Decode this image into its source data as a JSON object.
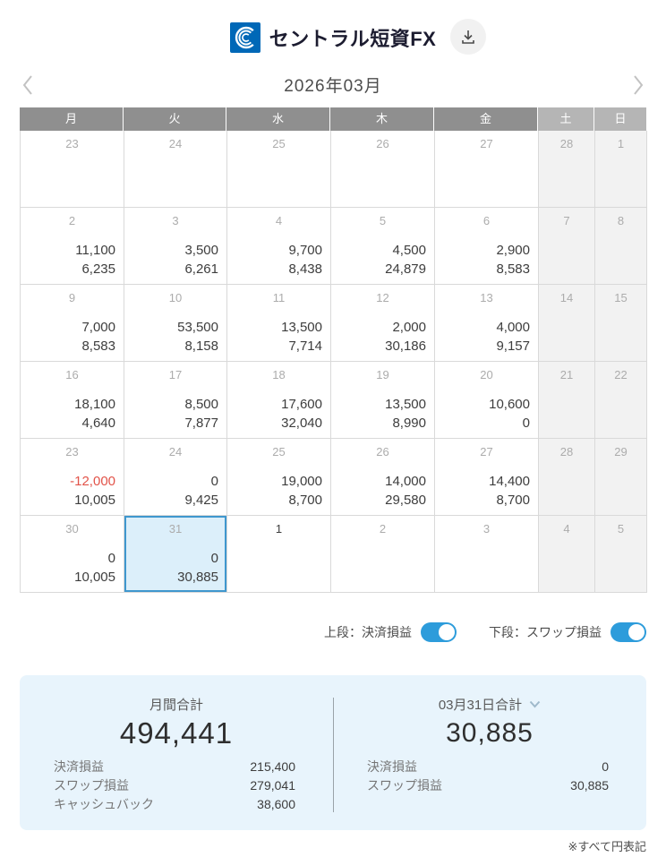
{
  "header": {
    "logo_text": "セントラル短資FX"
  },
  "month_nav": {
    "title": "2026年03月"
  },
  "calendar": {
    "weekdays": [
      "月",
      "火",
      "水",
      "木",
      "金",
      "土",
      "日"
    ],
    "weeks": [
      [
        {
          "day": "23"
        },
        {
          "day": "24"
        },
        {
          "day": "25"
        },
        {
          "day": "26"
        },
        {
          "day": "27"
        },
        {
          "day": "28"
        },
        {
          "day": "1"
        }
      ],
      [
        {
          "day": "2",
          "upper": "11,100",
          "lower": "6,235"
        },
        {
          "day": "3",
          "upper": "3,500",
          "lower": "6,261"
        },
        {
          "day": "4",
          "upper": "9,700",
          "lower": "8,438"
        },
        {
          "day": "5",
          "upper": "4,500",
          "lower": "24,879"
        },
        {
          "day": "6",
          "upper": "2,900",
          "lower": "8,583"
        },
        {
          "day": "7"
        },
        {
          "day": "8"
        }
      ],
      [
        {
          "day": "9",
          "upper": "7,000",
          "lower": "8,583"
        },
        {
          "day": "10",
          "upper": "53,500",
          "lower": "8,158"
        },
        {
          "day": "11",
          "upper": "13,500",
          "lower": "7,714"
        },
        {
          "day": "12",
          "upper": "2,000",
          "lower": "30,186"
        },
        {
          "day": "13",
          "upper": "4,000",
          "lower": "9,157"
        },
        {
          "day": "14"
        },
        {
          "day": "15"
        }
      ],
      [
        {
          "day": "16",
          "upper": "18,100",
          "lower": "4,640"
        },
        {
          "day": "17",
          "upper": "8,500",
          "lower": "7,877"
        },
        {
          "day": "18",
          "upper": "17,600",
          "lower": "32,040"
        },
        {
          "day": "19",
          "upper": "13,500",
          "lower": "8,990"
        },
        {
          "day": "20",
          "upper": "10,600",
          "lower": "0"
        },
        {
          "day": "21"
        },
        {
          "day": "22"
        }
      ],
      [
        {
          "day": "23",
          "upper": "-12,000",
          "lower": "10,005"
        },
        {
          "day": "24",
          "upper": "0",
          "lower": "9,425"
        },
        {
          "day": "25",
          "upper": "19,000",
          "lower": "8,700"
        },
        {
          "day": "26",
          "upper": "14,000",
          "lower": "29,580"
        },
        {
          "day": "27",
          "upper": "14,400",
          "lower": "8,700"
        },
        {
          "day": "28"
        },
        {
          "day": "29"
        }
      ],
      [
        {
          "day": "30",
          "upper": "0",
          "lower": "10,005"
        },
        {
          "day": "31",
          "upper": "0",
          "lower": "30,885",
          "selected": true
        },
        {
          "day": "1",
          "dark": true
        },
        {
          "day": "2"
        },
        {
          "day": "3"
        },
        {
          "day": "4"
        },
        {
          "day": "5"
        }
      ]
    ]
  },
  "toggles": [
    {
      "label": "上段：決済損益",
      "on": true
    },
    {
      "label": "下段：スワップ損益",
      "on": true
    }
  ],
  "summary": {
    "monthly": {
      "title": "月間合計",
      "total": "494,441",
      "rows": [
        {
          "label": "決済損益",
          "value": "215,400"
        },
        {
          "label": "スワップ損益",
          "value": "279,041"
        },
        {
          "label": "キャッシュバック",
          "value": "38,600"
        }
      ]
    },
    "daily": {
      "title": "03月31日合計",
      "total": "30,885",
      "rows": [
        {
          "label": "決済損益",
          "value": "0"
        },
        {
          "label": "スワップ損益",
          "value": "30,885"
        }
      ]
    }
  },
  "footnote": "※すべて円表記",
  "icons": {
    "brand": "brand-logo-icon",
    "download": "download-icon",
    "prev": "chevron-left-icon",
    "next": "chevron-right-icon",
    "daily_dropdown": "chevron-down-icon"
  },
  "colors": {
    "accent": "#2D9CDB",
    "selected_bg": "#DCEFFA",
    "selected_border": "#3F97CE",
    "negative": "#E25349",
    "panel_bg": "#E8F4FC",
    "brand_blue": "#0068B7"
  }
}
